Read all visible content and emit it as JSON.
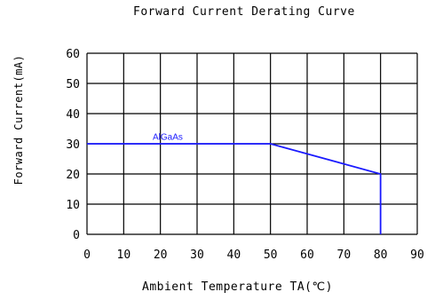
{
  "chart_data": {
    "type": "line",
    "title": "Forward Current Derating Curve",
    "xlabel": "Ambient Temperature TA(℃)",
    "ylabel": "Forward Current(mA)",
    "xlim": [
      0,
      90
    ],
    "ylim": [
      0,
      60
    ],
    "xticks": [
      "0",
      "10",
      "20",
      "30",
      "40",
      "50",
      "60",
      "70",
      "80",
      "90"
    ],
    "yticks": [
      "0",
      "10",
      "20",
      "30",
      "40",
      "50",
      "60"
    ],
    "grid": true,
    "legend": "none",
    "colors": {
      "series": "#1a1aff",
      "grid": "#000000"
    },
    "series": [
      {
        "name": "AlGaAs",
        "x": [
          0,
          50,
          80,
          80
        ],
        "y": [
          30,
          30,
          20,
          0
        ]
      }
    ],
    "annotations": [
      {
        "text": "AlGaAs",
        "x": 22,
        "y": 31
      }
    ]
  }
}
